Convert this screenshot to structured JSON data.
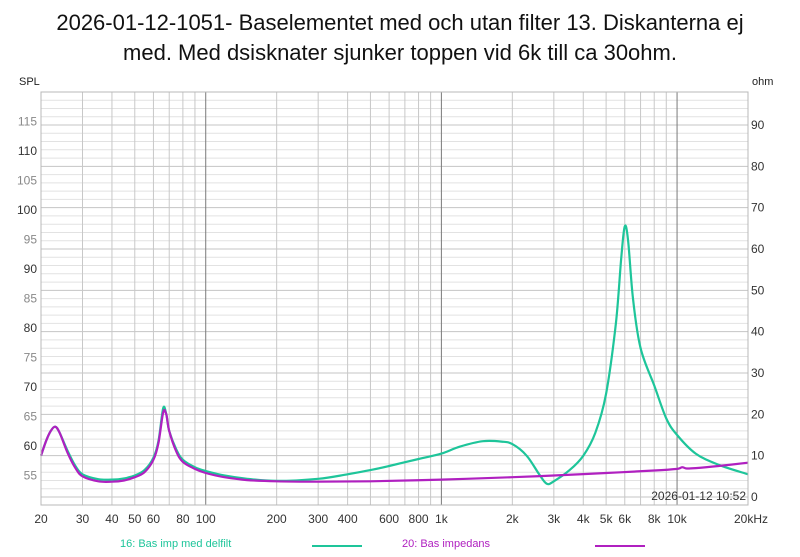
{
  "title_line1": "2026-01-12-1051- Baselementet med och utan filter 13. Diskanterna ej",
  "title_line2": "med. Med dsisknater sjunker toppen vid 6k till ca 30ohm.",
  "left_axis_label": "SPL",
  "right_axis_label": "ohm",
  "timestamp": "2026-01-12 10:52",
  "legend": [
    {
      "label": "16: Bas imp med delfilt",
      "color": "#1ec59a"
    },
    {
      "label": "20: Bas impedans",
      "color": "#b020c0"
    }
  ],
  "chart_data": {
    "type": "line",
    "title": "2026-01-12-1051- Baselementet med och utan filter 13. Diskanterna ej med. Med dsisknater sjunker toppen vid 6k till ca 30ohm.",
    "xlabel": "Hz",
    "xscale": "log",
    "xlim": [
      20,
      20000
    ],
    "x_ticks": [
      "20",
      "30",
      "40",
      "50",
      "60",
      "80",
      "100",
      "200",
      "300",
      "400",
      "600",
      "800",
      "1k",
      "2k",
      "3k",
      "4k",
      "5k",
      "6k",
      "8k",
      "10k",
      "20kHz"
    ],
    "ylabel_left": "SPL",
    "ylim_left": [
      50,
      120
    ],
    "y_ticks_left": [
      55,
      60,
      65,
      70,
      75,
      80,
      85,
      90,
      95,
      100,
      105,
      110,
      115
    ],
    "ylabel_right": "ohm",
    "ylim_right": [
      0,
      90
    ],
    "y_ticks_right": [
      0,
      10,
      20,
      30,
      40,
      50,
      60,
      70,
      80,
      90
    ],
    "grid": true,
    "legend_position": "bottom",
    "series": [
      {
        "name": "16: Bas imp med delfilt",
        "color": "#1ec59a",
        "axis": "right",
        "x": [
          20,
          21,
          22,
          23,
          24,
          26,
          28,
          30,
          35,
          40,
          45,
          50,
          55,
          60,
          63,
          66,
          68,
          70,
          75,
          80,
          90,
          100,
          120,
          150,
          200,
          300,
          400,
          500,
          600,
          800,
          1000,
          1200,
          1500,
          1800,
          2000,
          2300,
          2600,
          2800,
          3000,
          3500,
          4000,
          4500,
          5000,
          5500,
          5800,
          6000,
          6200,
          6500,
          7000,
          8000,
          9000,
          10000,
          12000,
          15000,
          20000
        ],
        "y": [
          10,
          13.5,
          16,
          17,
          15.5,
          11,
          7.5,
          5.5,
          4.3,
          4.2,
          4.5,
          5.2,
          6.5,
          9.5,
          13.5,
          21.5,
          20,
          16,
          11.5,
          9,
          7.2,
          6.3,
          5.2,
          4.4,
          3.9,
          4.4,
          5.5,
          6.5,
          7.5,
          9.2,
          10.5,
          12.2,
          13.5,
          13.4,
          12.8,
          10,
          5.5,
          3.2,
          3.8,
          6.5,
          10,
          15.5,
          25,
          42,
          58,
          65.5,
          62,
          48,
          36,
          27,
          19,
          15,
          10.5,
          7.8,
          5.5
        ]
      },
      {
        "name": "20: Bas impedans",
        "color": "#b020c0",
        "axis": "right",
        "x": [
          20,
          21,
          22,
          23,
          24,
          26,
          28,
          30,
          35,
          40,
          45,
          50,
          55,
          60,
          63,
          66,
          68,
          70,
          75,
          80,
          90,
          100,
          120,
          150,
          200,
          300,
          500,
          1000,
          2000,
          3000,
          5000,
          8000,
          10000,
          10500,
          11000,
          12000,
          15000,
          20000
        ],
        "y": [
          10,
          13.5,
          16,
          17,
          15.5,
          10.5,
          7,
          5,
          3.8,
          3.7,
          4,
          4.8,
          6,
          9,
          13,
          20.5,
          20,
          16,
          11,
          8.5,
          6.8,
          5.8,
          4.8,
          4.1,
          3.8,
          3.7,
          3.8,
          4.2,
          4.8,
          5.2,
          5.8,
          6.4,
          6.8,
          7.2,
          6.9,
          7.0,
          7.5,
          8.3
        ]
      }
    ]
  }
}
